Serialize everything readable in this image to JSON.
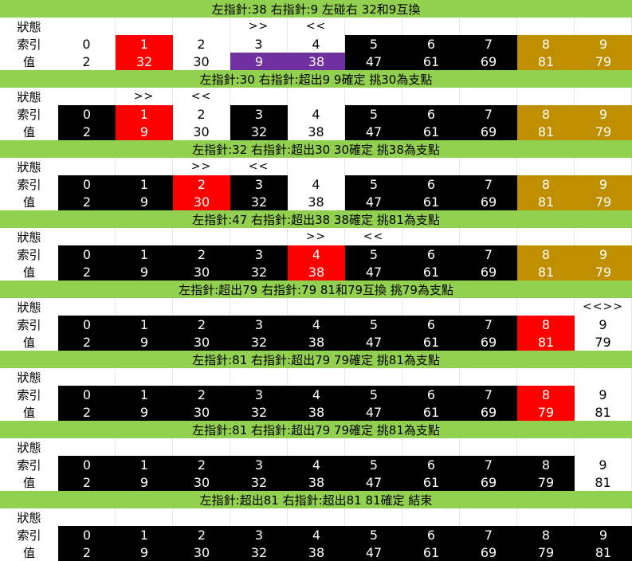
{
  "row_labels": {
    "state": "狀態",
    "index": "索引",
    "value": "值"
  },
  "steps": [
    {
      "banner": "左指針:38 右指針:9 左碰右 32和9互換",
      "markers": [
        "",
        "",
        "",
        ">>",
        "<<",
        "",
        "",
        "",
        "",
        ""
      ],
      "indices": [
        "0",
        "1",
        "2",
        "3",
        "4",
        "5",
        "6",
        "7",
        "8",
        "9"
      ],
      "values": [
        "2",
        "32",
        "30",
        "9",
        "38",
        "47",
        "61",
        "69",
        "81",
        "79"
      ],
      "index_colors": [
        "white",
        "red",
        "white",
        "white",
        "white",
        "black",
        "black",
        "black",
        "gold",
        "gold"
      ],
      "value_colors": [
        "white",
        "red",
        "white",
        "purple",
        "purple",
        "black",
        "black",
        "black",
        "gold",
        "gold"
      ]
    },
    {
      "banner": "左指針:30 右指針:超出9 9確定 挑30為支點",
      "markers": [
        "",
        ">>",
        "<<",
        "",
        "",
        "",
        "",
        "",
        "",
        ""
      ],
      "indices": [
        "0",
        "1",
        "2",
        "3",
        "4",
        "5",
        "6",
        "7",
        "8",
        "9"
      ],
      "values": [
        "2",
        "9",
        "30",
        "32",
        "38",
        "47",
        "61",
        "69",
        "81",
        "79"
      ],
      "index_colors": [
        "black",
        "red",
        "white",
        "black",
        "white",
        "black",
        "black",
        "black",
        "gold",
        "gold"
      ],
      "value_colors": [
        "black",
        "red",
        "white",
        "black",
        "white",
        "black",
        "black",
        "black",
        "gold",
        "gold"
      ]
    },
    {
      "banner": "左指針:32 右指針:超出30 30確定 挑38為支點",
      "markers": [
        "",
        "",
        ">>",
        "<<",
        "",
        "",
        "",
        "",
        "",
        ""
      ],
      "indices": [
        "0",
        "1",
        "2",
        "3",
        "4",
        "5",
        "6",
        "7",
        "8",
        "9"
      ],
      "values": [
        "2",
        "9",
        "30",
        "32",
        "38",
        "47",
        "61",
        "69",
        "81",
        "79"
      ],
      "index_colors": [
        "black",
        "black",
        "red",
        "black",
        "white",
        "black",
        "black",
        "black",
        "gold",
        "gold"
      ],
      "value_colors": [
        "black",
        "black",
        "red",
        "black",
        "white",
        "black",
        "black",
        "black",
        "gold",
        "gold"
      ]
    },
    {
      "banner": "左指針:47 右指針:超出38 38確定 挑81為支點",
      "markers": [
        "",
        "",
        "",
        "",
        ">>",
        "<<",
        "",
        "",
        "",
        ""
      ],
      "indices": [
        "0",
        "1",
        "2",
        "3",
        "4",
        "5",
        "6",
        "7",
        "8",
        "9"
      ],
      "values": [
        "2",
        "9",
        "30",
        "32",
        "38",
        "47",
        "61",
        "69",
        "81",
        "79"
      ],
      "index_colors": [
        "black",
        "black",
        "black",
        "black",
        "red",
        "black",
        "black",
        "black",
        "gold",
        "gold"
      ],
      "value_colors": [
        "black",
        "black",
        "black",
        "black",
        "red",
        "black",
        "black",
        "black",
        "gold",
        "gold"
      ]
    },
    {
      "banner": "左指針:超出79 右指針:79 81和79互換 挑79為支點",
      "markers": [
        "",
        "",
        "",
        "",
        "",
        "",
        "",
        "",
        "",
        "<<>>"
      ],
      "indices": [
        "0",
        "1",
        "2",
        "3",
        "4",
        "5",
        "6",
        "7",
        "8",
        "9"
      ],
      "values": [
        "2",
        "9",
        "30",
        "32",
        "38",
        "47",
        "61",
        "69",
        "81",
        "79"
      ],
      "index_colors": [
        "black",
        "black",
        "black",
        "black",
        "black",
        "black",
        "black",
        "black",
        "red",
        "white"
      ],
      "value_colors": [
        "black",
        "black",
        "black",
        "black",
        "black",
        "black",
        "black",
        "black",
        "red",
        "white"
      ]
    },
    {
      "banner": "左指針:81 右指針:超出79 79確定 挑81為支點",
      "markers": [
        "",
        "",
        "",
        "",
        "",
        "",
        "",
        "",
        "",
        ""
      ],
      "indices": [
        "0",
        "1",
        "2",
        "3",
        "4",
        "5",
        "6",
        "7",
        "8",
        "9"
      ],
      "values": [
        "2",
        "9",
        "30",
        "32",
        "38",
        "47",
        "61",
        "69",
        "79",
        "81"
      ],
      "index_colors": [
        "black",
        "black",
        "black",
        "black",
        "black",
        "black",
        "black",
        "black",
        "red",
        "white"
      ],
      "value_colors": [
        "black",
        "black",
        "black",
        "black",
        "black",
        "black",
        "black",
        "black",
        "red",
        "white"
      ]
    },
    {
      "banner": "左指針:81 右指針:超出79 79確定 挑81為支點",
      "markers": [
        "",
        "",
        "",
        "",
        "",
        "",
        "",
        "",
        "",
        ""
      ],
      "indices": [
        "0",
        "1",
        "2",
        "3",
        "4",
        "5",
        "6",
        "7",
        "8",
        "9"
      ],
      "values": [
        "2",
        "9",
        "30",
        "32",
        "38",
        "47",
        "61",
        "69",
        "79",
        "81"
      ],
      "index_colors": [
        "black",
        "black",
        "black",
        "black",
        "black",
        "black",
        "black",
        "black",
        "black",
        "white"
      ],
      "value_colors": [
        "black",
        "black",
        "black",
        "black",
        "black",
        "black",
        "black",
        "black",
        "black",
        "white"
      ]
    },
    {
      "banner": "左指針:超出81 右指針:超出81 81確定 結束",
      "markers": [
        "",
        "",
        "",
        "",
        "",
        "",
        "",
        "",
        "",
        ""
      ],
      "indices": [
        "0",
        "1",
        "2",
        "3",
        "4",
        "5",
        "6",
        "7",
        "8",
        "9"
      ],
      "values": [
        "2",
        "9",
        "30",
        "32",
        "38",
        "47",
        "61",
        "69",
        "79",
        "81"
      ],
      "index_colors": [
        "black",
        "black",
        "black",
        "black",
        "black",
        "black",
        "black",
        "black",
        "black",
        "black"
      ],
      "value_colors": [
        "black",
        "black",
        "black",
        "black",
        "black",
        "black",
        "black",
        "black",
        "black",
        "black"
      ]
    }
  ],
  "colors": {
    "banner": "#92d050",
    "black": "#000000",
    "red": "#ff0000",
    "gold": "#bf8f00",
    "purple": "#7030a0",
    "white": "#ffffff"
  }
}
